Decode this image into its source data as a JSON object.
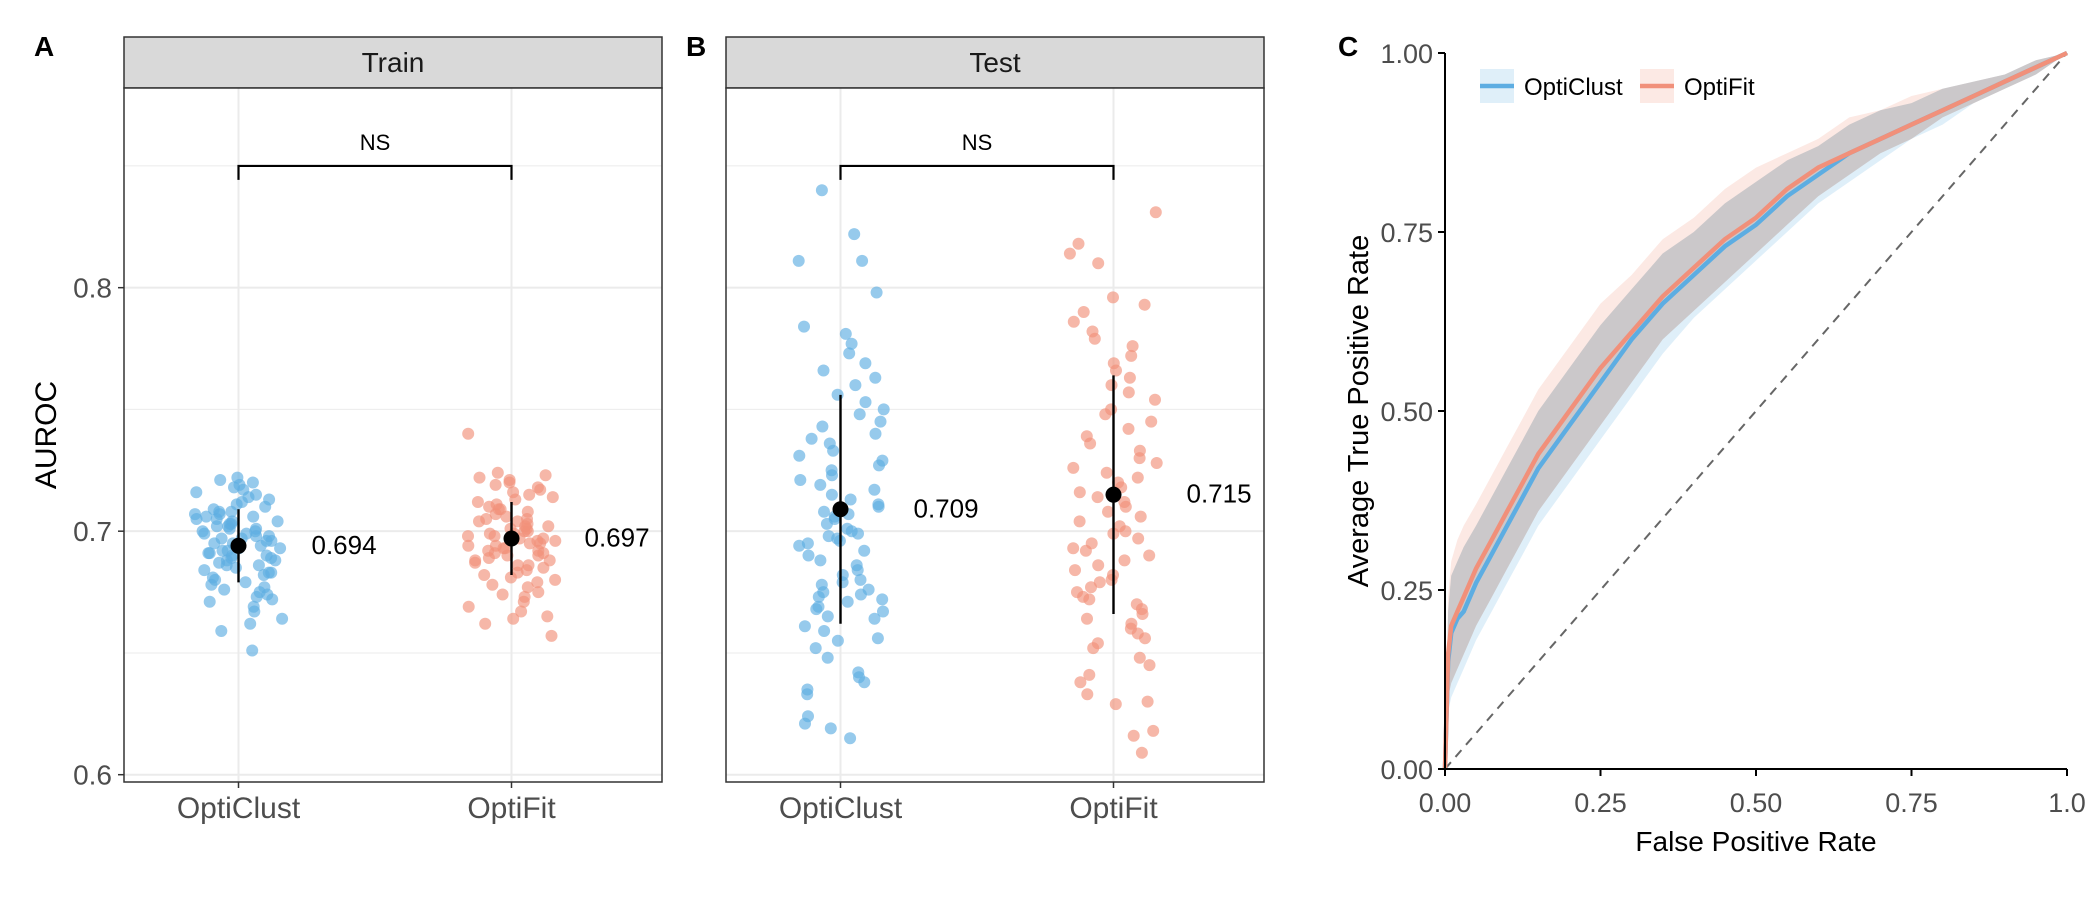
{
  "colors": {
    "opticlust": "#5DADE2",
    "optifit": "#F1907A",
    "mean_point": "#000000",
    "strip_fill": "#D9D9D9",
    "ribbon_overlap": "#A9A9A9",
    "grid": "#EBEBEB",
    "axis_text": "#4D4D4D"
  },
  "panels": {
    "A": {
      "tag": "A",
      "strip": "Train",
      "significance": "NS",
      "ylabel": "AUROC"
    },
    "B": {
      "tag": "B",
      "strip": "Test",
      "significance": "NS"
    },
    "C": {
      "tag": "C"
    }
  },
  "chart_data": [
    {
      "type": "scatter",
      "panel": "A",
      "title": "Train",
      "ylabel": "AUROC",
      "ylim": [
        0.597,
        0.882
      ],
      "yticks": [
        0.6,
        0.7,
        0.8
      ],
      "yticklabels": [
        "0.6",
        "0.7",
        "0.8"
      ],
      "categories": [
        "OptiClust",
        "OptiFit"
      ],
      "series": [
        {
          "name": "OptiClust",
          "mean": 0.694,
          "sd_low": 0.679,
          "sd_high": 0.709,
          "mean_label": "0.694",
          "values": [
            0.651,
            0.659,
            0.662,
            0.664,
            0.667,
            0.669,
            0.671,
            0.672,
            0.673,
            0.674,
            0.675,
            0.676,
            0.677,
            0.678,
            0.679,
            0.68,
            0.681,
            0.682,
            0.683,
            0.683,
            0.684,
            0.685,
            0.686,
            0.686,
            0.687,
            0.688,
            0.688,
            0.689,
            0.689,
            0.69,
            0.69,
            0.691,
            0.691,
            0.692,
            0.692,
            0.693,
            0.693,
            0.694,
            0.694,
            0.695,
            0.695,
            0.696,
            0.696,
            0.697,
            0.697,
            0.698,
            0.698,
            0.699,
            0.699,
            0.7,
            0.7,
            0.701,
            0.701,
            0.702,
            0.702,
            0.703,
            0.703,
            0.704,
            0.704,
            0.705,
            0.705,
            0.706,
            0.706,
            0.707,
            0.707,
            0.708,
            0.708,
            0.709,
            0.71,
            0.711,
            0.712,
            0.713,
            0.714,
            0.715,
            0.716,
            0.717,
            0.718,
            0.719,
            0.72,
            0.721,
            0.722
          ]
        },
        {
          "name": "OptiFit",
          "mean": 0.697,
          "sd_low": 0.682,
          "sd_high": 0.712,
          "mean_label": "0.697",
          "values": [
            0.657,
            0.662,
            0.664,
            0.665,
            0.667,
            0.669,
            0.671,
            0.673,
            0.674,
            0.675,
            0.677,
            0.678,
            0.679,
            0.68,
            0.681,
            0.682,
            0.683,
            0.684,
            0.685,
            0.686,
            0.686,
            0.687,
            0.688,
            0.688,
            0.689,
            0.69,
            0.69,
            0.691,
            0.691,
            0.692,
            0.692,
            0.693,
            0.693,
            0.694,
            0.694,
            0.695,
            0.695,
            0.696,
            0.696,
            0.697,
            0.697,
            0.698,
            0.698,
            0.699,
            0.699,
            0.7,
            0.7,
            0.701,
            0.701,
            0.702,
            0.702,
            0.703,
            0.704,
            0.704,
            0.705,
            0.705,
            0.706,
            0.707,
            0.708,
            0.709,
            0.709,
            0.71,
            0.711,
            0.712,
            0.713,
            0.714,
            0.715,
            0.716,
            0.717,
            0.718,
            0.719,
            0.72,
            0.721,
            0.722,
            0.723,
            0.724,
            0.74
          ]
        }
      ]
    },
    {
      "type": "scatter",
      "panel": "B",
      "title": "Test",
      "ylim": [
        0.597,
        0.882
      ],
      "yticks": [
        0.6,
        0.7,
        0.8
      ],
      "categories": [
        "OptiClust",
        "OptiFit"
      ],
      "series": [
        {
          "name": "OptiClust",
          "mean": 0.709,
          "sd_low": 0.662,
          "sd_high": 0.756,
          "mean_label": "0.709",
          "values": [
            0.615,
            0.619,
            0.621,
            0.624,
            0.633,
            0.635,
            0.638,
            0.64,
            0.642,
            0.648,
            0.652,
            0.655,
            0.656,
            0.659,
            0.661,
            0.664,
            0.665,
            0.667,
            0.668,
            0.669,
            0.671,
            0.672,
            0.673,
            0.674,
            0.675,
            0.676,
            0.678,
            0.679,
            0.68,
            0.682,
            0.684,
            0.686,
            0.688,
            0.69,
            0.692,
            0.694,
            0.695,
            0.696,
            0.697,
            0.698,
            0.699,
            0.7,
            0.701,
            0.703,
            0.705,
            0.706,
            0.707,
            0.708,
            0.71,
            0.711,
            0.713,
            0.715,
            0.717,
            0.719,
            0.721,
            0.723,
            0.725,
            0.727,
            0.729,
            0.731,
            0.733,
            0.736,
            0.738,
            0.74,
            0.743,
            0.745,
            0.748,
            0.75,
            0.753,
            0.756,
            0.76,
            0.763,
            0.766,
            0.769,
            0.773,
            0.777,
            0.781,
            0.784,
            0.798,
            0.811,
            0.811,
            0.822,
            0.84
          ]
        },
        {
          "name": "OptiFit",
          "mean": 0.715,
          "sd_low": 0.666,
          "sd_high": 0.764,
          "mean_label": "0.715",
          "values": [
            0.609,
            0.616,
            0.618,
            0.629,
            0.63,
            0.633,
            0.638,
            0.641,
            0.645,
            0.648,
            0.652,
            0.654,
            0.656,
            0.658,
            0.66,
            0.662,
            0.664,
            0.666,
            0.668,
            0.67,
            0.672,
            0.673,
            0.675,
            0.677,
            0.679,
            0.68,
            0.682,
            0.684,
            0.686,
            0.688,
            0.69,
            0.692,
            0.693,
            0.695,
            0.697,
            0.699,
            0.7,
            0.702,
            0.704,
            0.706,
            0.708,
            0.71,
            0.712,
            0.714,
            0.716,
            0.718,
            0.72,
            0.722,
            0.724,
            0.726,
            0.728,
            0.73,
            0.733,
            0.736,
            0.739,
            0.742,
            0.745,
            0.748,
            0.75,
            0.754,
            0.757,
            0.76,
            0.763,
            0.766,
            0.769,
            0.772,
            0.776,
            0.779,
            0.782,
            0.786,
            0.79,
            0.793,
            0.796,
            0.81,
            0.814,
            0.818,
            0.831
          ]
        }
      ]
    },
    {
      "type": "line",
      "panel": "C",
      "xlabel": "False Positive Rate",
      "ylabel": "Average True Positive Rate",
      "xlim": [
        0,
        1
      ],
      "ylim": [
        0,
        1
      ],
      "xticks": [
        0,
        0.25,
        0.5,
        0.75,
        1
      ],
      "xticklabels": [
        "0.00",
        "0.25",
        "0.50",
        "0.75",
        "1.0"
      ],
      "yticks": [
        0,
        0.25,
        0.5,
        0.75,
        1
      ],
      "yticklabels": [
        "0.00",
        "0.25",
        "0.50",
        "0.75",
        "1.00"
      ],
      "legend": "top-left",
      "reference_line": "diagonal dashed",
      "series": [
        {
          "name": "OptiClust",
          "x": [
            0,
            0.005,
            0.01,
            0.02,
            0.03,
            0.05,
            0.075,
            0.1,
            0.125,
            0.15,
            0.2,
            0.25,
            0.3,
            0.35,
            0.4,
            0.45,
            0.5,
            0.55,
            0.6,
            0.65,
            0.7,
            0.75,
            0.8,
            0.85,
            0.9,
            0.95,
            1.0
          ],
          "y": [
            0,
            0.15,
            0.19,
            0.21,
            0.22,
            0.26,
            0.3,
            0.34,
            0.38,
            0.42,
            0.48,
            0.54,
            0.6,
            0.65,
            0.69,
            0.73,
            0.76,
            0.8,
            0.83,
            0.86,
            0.88,
            0.9,
            0.92,
            0.94,
            0.96,
            0.98,
            1.0
          ],
          "lower": [
            0,
            0.08,
            0.1,
            0.12,
            0.14,
            0.18,
            0.22,
            0.26,
            0.3,
            0.34,
            0.4,
            0.46,
            0.52,
            0.58,
            0.63,
            0.67,
            0.71,
            0.75,
            0.79,
            0.82,
            0.85,
            0.88,
            0.9,
            0.93,
            0.95,
            0.97,
            1.0
          ],
          "upper": [
            0,
            0.22,
            0.27,
            0.29,
            0.31,
            0.34,
            0.38,
            0.42,
            0.46,
            0.5,
            0.56,
            0.62,
            0.67,
            0.72,
            0.75,
            0.79,
            0.82,
            0.85,
            0.87,
            0.9,
            0.92,
            0.93,
            0.95,
            0.96,
            0.97,
            0.99,
            1.0
          ]
        },
        {
          "name": "OptiFit",
          "x": [
            0,
            0.005,
            0.01,
            0.02,
            0.03,
            0.05,
            0.075,
            0.1,
            0.125,
            0.15,
            0.2,
            0.25,
            0.3,
            0.35,
            0.4,
            0.45,
            0.5,
            0.55,
            0.6,
            0.65,
            0.7,
            0.75,
            0.8,
            0.85,
            0.9,
            0.95,
            1.0
          ],
          "y": [
            0,
            0.16,
            0.2,
            0.22,
            0.24,
            0.28,
            0.32,
            0.36,
            0.4,
            0.44,
            0.5,
            0.56,
            0.61,
            0.66,
            0.7,
            0.74,
            0.77,
            0.81,
            0.84,
            0.86,
            0.88,
            0.9,
            0.92,
            0.94,
            0.96,
            0.98,
            1.0
          ],
          "lower": [
            0,
            0.1,
            0.12,
            0.14,
            0.16,
            0.2,
            0.24,
            0.28,
            0.32,
            0.36,
            0.42,
            0.48,
            0.54,
            0.6,
            0.64,
            0.68,
            0.72,
            0.76,
            0.8,
            0.83,
            0.86,
            0.88,
            0.91,
            0.93,
            0.95,
            0.97,
            1.0
          ],
          "upper": [
            0,
            0.24,
            0.29,
            0.32,
            0.34,
            0.37,
            0.41,
            0.45,
            0.49,
            0.53,
            0.59,
            0.65,
            0.69,
            0.74,
            0.77,
            0.81,
            0.84,
            0.86,
            0.88,
            0.91,
            0.92,
            0.94,
            0.95,
            0.96,
            0.97,
            0.99,
            1.0
          ]
        }
      ]
    }
  ]
}
